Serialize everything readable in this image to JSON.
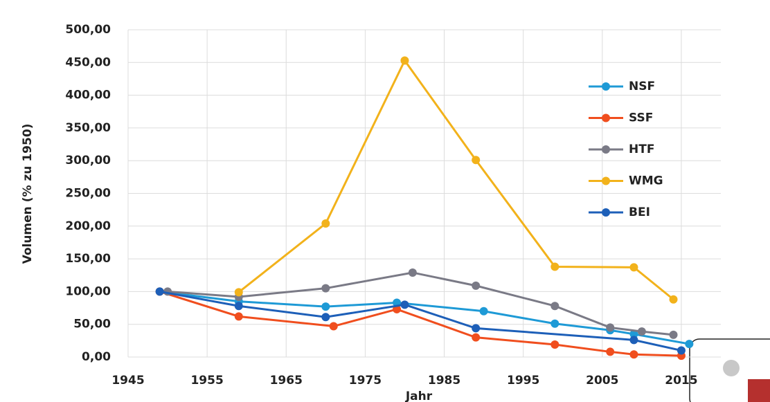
{
  "chart_data": {
    "type": "line",
    "y_label": "Volumen (% zu 1950)",
    "x_label": "Jahr",
    "xlim": [
      1945,
      2020
    ],
    "xticks": [
      1945,
      1955,
      1965,
      1975,
      1985,
      1995,
      2005,
      2015
    ],
    "ylim": [
      0,
      500
    ],
    "yticks": [
      {
        "value": 0,
        "label": "0,00"
      },
      {
        "value": 50,
        "label": "50,00"
      },
      {
        "value": 100,
        "label": "100,00"
      },
      {
        "value": 150,
        "label": "150,00"
      },
      {
        "value": 200,
        "label": "200,00"
      },
      {
        "value": 250,
        "label": "250,00"
      },
      {
        "value": 300,
        "label": "300,00"
      },
      {
        "value": 350,
        "label": "350,00"
      },
      {
        "value": 400,
        "label": "400,00"
      },
      {
        "value": 450,
        "label": "450,00"
      },
      {
        "value": 500,
        "label": "500,00"
      }
    ],
    "grid": true,
    "series": [
      {
        "name": "NSF",
        "color": "#1e9ad6",
        "x": [
          1949,
          1959,
          1970,
          1979,
          1990,
          1999,
          2006,
          2009,
          2016
        ],
        "values": [
          100,
          85,
          77,
          83,
          70,
          51,
          41,
          35,
          20
        ]
      },
      {
        "name": "SSF",
        "color": "#f04e1e",
        "x": [
          1949,
          1959,
          1971,
          1979,
          1989,
          1999,
          2006,
          2009,
          2015
        ],
        "values": [
          100,
          62,
          47,
          73,
          30,
          19,
          8,
          4,
          2
        ]
      },
      {
        "name": "HTF",
        "color": "#7a7a86",
        "x": [
          1950,
          1959,
          1970,
          1981,
          1989,
          1999,
          2006,
          2010,
          2014
        ],
        "values": [
          100,
          92,
          105,
          129,
          109,
          78,
          45,
          39,
          34
        ]
      },
      {
        "name": "WMG",
        "color": "#f2b21b",
        "x": [
          1959,
          1970,
          1980,
          1989,
          1999,
          2009,
          2014
        ],
        "values": [
          99,
          204,
          453,
          301,
          138,
          137,
          88
        ]
      },
      {
        "name": "BEI",
        "color": "#1d5fb8",
        "x": [
          1949,
          1959,
          1970,
          1980,
          1989,
          2009,
          2015
        ],
        "values": [
          100,
          78,
          61,
          80,
          44,
          26,
          10
        ]
      }
    ]
  }
}
